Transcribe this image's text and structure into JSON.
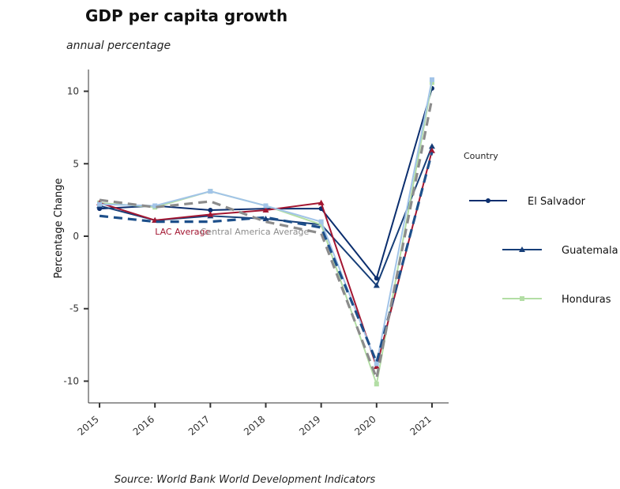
{
  "chart_data": {
    "type": "line",
    "title": "GDP per capita growth",
    "subtitle": "annual percentage",
    "ylabel": "Percentage Change",
    "xlabel": "",
    "caption": "Source: World Bank World Development Indicators",
    "x": [
      2015,
      2016,
      2017,
      2018,
      2019,
      2020,
      2021
    ],
    "x_ticks": [
      "2015",
      "2016",
      "2017",
      "2018",
      "2019",
      "2020",
      "2021"
    ],
    "y_ticks": [
      -10,
      -5,
      0,
      5,
      10
    ],
    "ylim": [
      -11.5,
      11.5
    ],
    "xlim": [
      2014.8,
      2021.3
    ],
    "grid": false,
    "legend": {
      "title": "Country",
      "position": "right"
    },
    "series": [
      {
        "name": "El Salvador",
        "color": "#0b2e6e",
        "style": "solid",
        "marker": "circle",
        "values": [
          1.9,
          2.1,
          1.8,
          1.9,
          1.9,
          -2.9,
          10.2
        ]
      },
      {
        "name": "Guatemala",
        "color": "#163e78",
        "style": "solid",
        "marker": "triangle",
        "values": [
          2.1,
          1.1,
          1.4,
          1.2,
          0.8,
          -3.4,
          6.2
        ]
      },
      {
        "name": "Honduras",
        "color": "#b3dea5",
        "style": "solid",
        "marker": "square",
        "values": [
          2.3,
          2.0,
          3.1,
          2.1,
          0.8,
          -10.2,
          10.6
        ]
      },
      {
        "name": "",
        "color": "#a31631",
        "style": "solid",
        "marker": "triangle",
        "values": [
          2.3,
          1.1,
          1.5,
          1.8,
          2.3,
          -9.0,
          5.9
        ]
      },
      {
        "name": "",
        "color": "#a2c4e8",
        "style": "solid",
        "marker": "square",
        "values": [
          2.2,
          2.1,
          3.1,
          2.1,
          1.0,
          -8.8,
          10.8
        ]
      },
      {
        "name": "",
        "color": "#1d4f8a",
        "style": "dashed",
        "marker": "none",
        "values": [
          1.4,
          1.0,
          1.0,
          1.3,
          0.6,
          -8.7,
          5.8
        ]
      },
      {
        "name": "",
        "color": "#8c8c8c",
        "style": "dashed",
        "marker": "none",
        "values": [
          2.5,
          2.0,
          2.4,
          1.0,
          0.2,
          -9.8,
          9.5
        ]
      }
    ],
    "annotations": [
      {
        "text": "LAC Average",
        "x": 2016.5,
        "y": 0.1,
        "color": "#a31631"
      },
      {
        "text": "Central America Average",
        "x": 2017.8,
        "y": 0.1,
        "color": "#8c8c8c"
      }
    ]
  }
}
